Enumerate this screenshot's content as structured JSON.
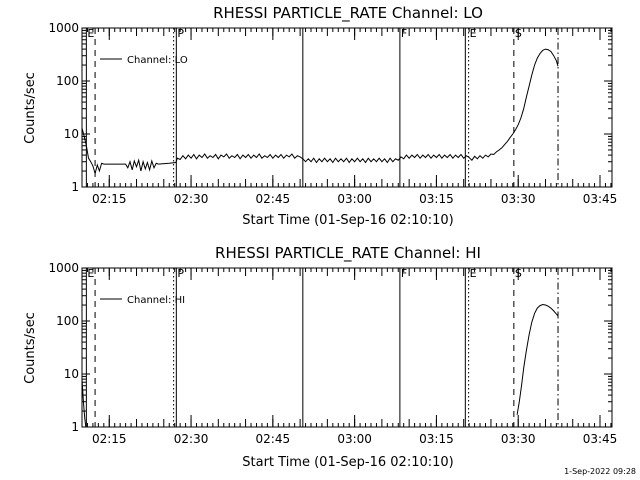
{
  "footer": "1-Sep-2022 09:28",
  "chart_data": [
    {
      "type": "line",
      "title": "RHESSI PARTICLE_RATE Channel: LO",
      "xlabel": "Start Time (01-Sep-16 02:10:10)",
      "ylabel": "Counts/sec",
      "yscale": "log",
      "ylim": [
        1,
        1000
      ],
      "xlim": [
        0,
        97.2
      ],
      "x_ticks": [
        {
          "x": 5,
          "label": "02:15"
        },
        {
          "x": 20,
          "label": "02:30"
        },
        {
          "x": 35,
          "label": "02:45"
        },
        {
          "x": 50,
          "label": "03:00"
        },
        {
          "x": 65,
          "label": "03:15"
        },
        {
          "x": 80,
          "label": "03:30"
        },
        {
          "x": 95,
          "label": "03:45"
        }
      ],
      "y_ticks": [
        {
          "y": 1,
          "label": "1"
        },
        {
          "y": 10,
          "label": "10"
        },
        {
          "y": 100,
          "label": "100"
        },
        {
          "y": 1000,
          "label": "1000"
        }
      ],
      "legend": {
        "label": "Channel: LO",
        "position": "top-left"
      },
      "markers": [
        {
          "label": "E",
          "x": 0.8,
          "style": "solid"
        },
        {
          "label": "",
          "x": 2.4,
          "style": "dash"
        },
        {
          "label": "",
          "x": 16.8,
          "style": "dot"
        },
        {
          "label": "P",
          "x": 17.3,
          "style": "solid"
        },
        {
          "label": "",
          "x": 40.5,
          "style": "solid"
        },
        {
          "label": "F",
          "x": 58.3,
          "style": "solid"
        },
        {
          "label": "",
          "x": 70.3,
          "style": "solid"
        },
        {
          "label": "E",
          "x": 70.9,
          "style": "dot"
        },
        {
          "label": "S",
          "x": 79.2,
          "style": "dash"
        },
        {
          "label": "",
          "x": 87.3,
          "style": "dashdot"
        }
      ],
      "series": [
        {
          "values": [
            {
              "x": 0.0,
              "y": 13
            },
            {
              "x": 0.4,
              "y": 9
            },
            {
              "x": 0.8,
              "y": 6
            },
            {
              "x": 1.2,
              "y": 3.5
            },
            {
              "x": 1.6,
              "y": 3.0
            },
            {
              "x": 2.0,
              "y": 2.5
            },
            {
              "x": 2.4,
              "y": 1.8
            },
            {
              "x": 2.8,
              "y": 2.6
            },
            {
              "x": 3.2,
              "y": 2.0
            },
            {
              "x": 3.6,
              "y": 2.8
            },
            {
              "x": 4.0,
              "y": 2.7
            },
            {
              "x": 6.0,
              "y": 2.7
            },
            {
              "x": 8.0,
              "y": 2.7
            },
            {
              "x": 8.4,
              "y": 2.3
            },
            {
              "x": 8.8,
              "y": 3.0
            },
            {
              "x": 9.2,
              "y": 2.1
            },
            {
              "x": 9.6,
              "y": 3.1
            },
            {
              "x": 10.0,
              "y": 2.4
            },
            {
              "x": 10.4,
              "y": 3.2
            },
            {
              "x": 10.8,
              "y": 2.0
            },
            {
              "x": 11.2,
              "y": 3.0
            },
            {
              "x": 11.6,
              "y": 2.2
            },
            {
              "x": 12.0,
              "y": 2.9
            },
            {
              "x": 12.4,
              "y": 2.1
            },
            {
              "x": 12.8,
              "y": 3.1
            },
            {
              "x": 13.2,
              "y": 2.3
            },
            {
              "x": 13.6,
              "y": 2.8
            },
            {
              "x": 14.0,
              "y": 2.7
            },
            {
              "x": 16.0,
              "y": 2.8
            },
            {
              "x": 17.2,
              "y": 2.9
            },
            {
              "x": 17.5,
              "y": 3.5
            },
            {
              "x": 18.0,
              "y": 3.3
            },
            {
              "x": 18.5,
              "y": 3.9
            },
            {
              "x": 19.0,
              "y": 3.4
            },
            {
              "x": 19.5,
              "y": 4.0
            },
            {
              "x": 20.0,
              "y": 3.5
            },
            {
              "x": 20.5,
              "y": 4.1
            },
            {
              "x": 21.0,
              "y": 3.4
            },
            {
              "x": 21.5,
              "y": 4.0
            },
            {
              "x": 22.0,
              "y": 3.6
            },
            {
              "x": 22.5,
              "y": 4.2
            },
            {
              "x": 23.0,
              "y": 3.5
            },
            {
              "x": 23.5,
              "y": 3.9
            },
            {
              "x": 24.0,
              "y": 3.6
            },
            {
              "x": 24.5,
              "y": 4.1
            },
            {
              "x": 25.0,
              "y": 3.4
            },
            {
              "x": 25.5,
              "y": 4.0
            },
            {
              "x": 26.0,
              "y": 3.7
            },
            {
              "x": 26.5,
              "y": 4.2
            },
            {
              "x": 27.0,
              "y": 3.5
            },
            {
              "x": 27.5,
              "y": 3.9
            },
            {
              "x": 28.0,
              "y": 3.6
            },
            {
              "x": 28.5,
              "y": 4.1
            },
            {
              "x": 29.0,
              "y": 3.4
            },
            {
              "x": 29.5,
              "y": 4.0
            },
            {
              "x": 30.0,
              "y": 3.6
            },
            {
              "x": 30.5,
              "y": 4.1
            },
            {
              "x": 31.0,
              "y": 3.5
            },
            {
              "x": 31.5,
              "y": 4.0
            },
            {
              "x": 32.0,
              "y": 3.6
            },
            {
              "x": 32.5,
              "y": 4.2
            },
            {
              "x": 33.0,
              "y": 3.5
            },
            {
              "x": 33.5,
              "y": 3.9
            },
            {
              "x": 34.0,
              "y": 3.6
            },
            {
              "x": 34.5,
              "y": 4.1
            },
            {
              "x": 35.0,
              "y": 3.5
            },
            {
              "x": 35.5,
              "y": 4.0
            },
            {
              "x": 36.0,
              "y": 3.6
            },
            {
              "x": 36.5,
              "y": 4.1
            },
            {
              "x": 37.0,
              "y": 3.5
            },
            {
              "x": 37.5,
              "y": 4.0
            },
            {
              "x": 38.0,
              "y": 3.7
            },
            {
              "x": 38.5,
              "y": 4.2
            },
            {
              "x": 39.0,
              "y": 3.5
            },
            {
              "x": 39.5,
              "y": 3.9
            },
            {
              "x": 40.0,
              "y": 3.7
            },
            {
              "x": 40.5,
              "y": 3.4
            },
            {
              "x": 41.0,
              "y": 3.0
            },
            {
              "x": 41.5,
              "y": 3.4
            },
            {
              "x": 42.0,
              "y": 3.0
            },
            {
              "x": 42.5,
              "y": 3.5
            },
            {
              "x": 43.0,
              "y": 2.9
            },
            {
              "x": 43.5,
              "y": 3.4
            },
            {
              "x": 44.0,
              "y": 3.0
            },
            {
              "x": 44.5,
              "y": 3.5
            },
            {
              "x": 45.0,
              "y": 3.0
            },
            {
              "x": 45.5,
              "y": 3.4
            },
            {
              "x": 46.0,
              "y": 2.9
            },
            {
              "x": 46.5,
              "y": 3.5
            },
            {
              "x": 47.0,
              "y": 3.0
            },
            {
              "x": 47.5,
              "y": 3.4
            },
            {
              "x": 48.0,
              "y": 3.0
            },
            {
              "x": 48.5,
              "y": 3.5
            },
            {
              "x": 49.0,
              "y": 2.9
            },
            {
              "x": 49.5,
              "y": 3.4
            },
            {
              "x": 50.0,
              "y": 3.0
            },
            {
              "x": 50.5,
              "y": 3.5
            },
            {
              "x": 51.0,
              "y": 3.0
            },
            {
              "x": 51.5,
              "y": 3.4
            },
            {
              "x": 52.0,
              "y": 2.9
            },
            {
              "x": 52.5,
              "y": 3.5
            },
            {
              "x": 53.0,
              "y": 3.0
            },
            {
              "x": 53.5,
              "y": 3.4
            },
            {
              "x": 54.0,
              "y": 3.0
            },
            {
              "x": 54.5,
              "y": 3.5
            },
            {
              "x": 55.0,
              "y": 3.0
            },
            {
              "x": 55.5,
              "y": 3.4
            },
            {
              "x": 56.0,
              "y": 2.9
            },
            {
              "x": 56.5,
              "y": 3.5
            },
            {
              "x": 57.0,
              "y": 3.0
            },
            {
              "x": 57.5,
              "y": 3.4
            },
            {
              "x": 58.0,
              "y": 3.2
            },
            {
              "x": 58.5,
              "y": 3.7
            },
            {
              "x": 59.0,
              "y": 3.4
            },
            {
              "x": 59.5,
              "y": 4.0
            },
            {
              "x": 60.0,
              "y": 3.5
            },
            {
              "x": 60.5,
              "y": 4.0
            },
            {
              "x": 61.0,
              "y": 3.6
            },
            {
              "x": 61.5,
              "y": 4.1
            },
            {
              "x": 62.0,
              "y": 3.5
            },
            {
              "x": 62.5,
              "y": 4.0
            },
            {
              "x": 63.0,
              "y": 3.6
            },
            {
              "x": 63.5,
              "y": 4.1
            },
            {
              "x": 64.0,
              "y": 3.5
            },
            {
              "x": 64.5,
              "y": 4.0
            },
            {
              "x": 65.0,
              "y": 3.6
            },
            {
              "x": 65.5,
              "y": 4.1
            },
            {
              "x": 66.0,
              "y": 3.5
            },
            {
              "x": 66.5,
              "y": 4.0
            },
            {
              "x": 67.0,
              "y": 3.6
            },
            {
              "x": 67.5,
              "y": 4.1
            },
            {
              "x": 68.0,
              "y": 3.5
            },
            {
              "x": 68.5,
              "y": 4.0
            },
            {
              "x": 69.0,
              "y": 3.6
            },
            {
              "x": 69.5,
              "y": 4.1
            },
            {
              "x": 70.0,
              "y": 3.5
            },
            {
              "x": 70.5,
              "y": 3.9
            },
            {
              "x": 71.0,
              "y": 3.6
            },
            {
              "x": 71.5,
              "y": 3.2
            },
            {
              "x": 72.0,
              "y": 3.8
            },
            {
              "x": 72.5,
              "y": 3.4
            },
            {
              "x": 73.0,
              "y": 3.9
            },
            {
              "x": 73.5,
              "y": 3.5
            },
            {
              "x": 74.0,
              "y": 4.0
            },
            {
              "x": 74.5,
              "y": 3.7
            },
            {
              "x": 75.0,
              "y": 4.2
            },
            {
              "x": 75.5,
              "y": 4.1
            },
            {
              "x": 76.0,
              "y": 4.6
            },
            {
              "x": 76.5,
              "y": 5.0
            },
            {
              "x": 77.0,
              "y": 5.5
            },
            {
              "x": 77.5,
              "y": 6.3
            },
            {
              "x": 78.0,
              "y": 7.2
            },
            {
              "x": 78.5,
              "y": 8.5
            },
            {
              "x": 79.0,
              "y": 10
            },
            {
              "x": 79.5,
              "y": 12
            },
            {
              "x": 80.0,
              "y": 15
            },
            {
              "x": 80.5,
              "y": 20
            },
            {
              "x": 81.0,
              "y": 30
            },
            {
              "x": 81.5,
              "y": 50
            },
            {
              "x": 82.0,
              "y": 80
            },
            {
              "x": 82.5,
              "y": 130
            },
            {
              "x": 83.0,
              "y": 200
            },
            {
              "x": 83.5,
              "y": 270
            },
            {
              "x": 84.0,
              "y": 330
            },
            {
              "x": 84.5,
              "y": 380
            },
            {
              "x": 85.0,
              "y": 400
            },
            {
              "x": 85.5,
              "y": 390
            },
            {
              "x": 86.0,
              "y": 360
            },
            {
              "x": 86.5,
              "y": 300
            },
            {
              "x": 87.0,
              "y": 240
            },
            {
              "x": 87.3,
              "y": 190
            }
          ]
        }
      ]
    },
    {
      "type": "line",
      "title": "RHESSI PARTICLE_RATE Channel: HI",
      "xlabel": "Start Time (01-Sep-16 02:10:10)",
      "ylabel": "Counts/sec",
      "yscale": "log",
      "ylim": [
        1,
        1000
      ],
      "xlim": [
        0,
        97.2
      ],
      "x_ticks": [
        {
          "x": 5,
          "label": "02:15"
        },
        {
          "x": 20,
          "label": "02:30"
        },
        {
          "x": 35,
          "label": "02:45"
        },
        {
          "x": 50,
          "label": "03:00"
        },
        {
          "x": 65,
          "label": "03:15"
        },
        {
          "x": 80,
          "label": "03:30"
        },
        {
          "x": 95,
          "label": "03:45"
        }
      ],
      "y_ticks": [
        {
          "y": 1,
          "label": "1"
        },
        {
          "y": 10,
          "label": "10"
        },
        {
          "y": 100,
          "label": "100"
        },
        {
          "y": 1000,
          "label": "1000"
        }
      ],
      "legend": {
        "label": "Channel: HI",
        "position": "top-left"
      },
      "markers": [
        {
          "label": "E",
          "x": 0.8,
          "style": "solid"
        },
        {
          "label": "",
          "x": 2.4,
          "style": "dash"
        },
        {
          "label": "",
          "x": 16.8,
          "style": "dot"
        },
        {
          "label": "P",
          "x": 17.3,
          "style": "solid"
        },
        {
          "label": "",
          "x": 40.5,
          "style": "solid"
        },
        {
          "label": "F",
          "x": 58.3,
          "style": "solid"
        },
        {
          "label": "",
          "x": 70.3,
          "style": "solid"
        },
        {
          "label": "E",
          "x": 70.9,
          "style": "dot"
        },
        {
          "label": "S",
          "x": 79.2,
          "style": "dash"
        },
        {
          "label": "",
          "x": 87.3,
          "style": "dashdot"
        }
      ],
      "series": [
        {
          "values": [
            {
              "x": 0.0,
              "y": 8
            },
            {
              "x": 0.25,
              "y": 3
            },
            {
              "x": 0.5,
              "y": 1.5
            },
            {
              "x": 0.7,
              "y": 1.0
            }
          ]
        },
        {
          "values": [
            {
              "x": 79.8,
              "y": 1.7
            },
            {
              "x": 80.2,
              "y": 3.0
            },
            {
              "x": 80.6,
              "y": 6
            },
            {
              "x": 81.0,
              "y": 13
            },
            {
              "x": 81.5,
              "y": 28
            },
            {
              "x": 82.0,
              "y": 55
            },
            {
              "x": 82.5,
              "y": 95
            },
            {
              "x": 83.0,
              "y": 140
            },
            {
              "x": 83.5,
              "y": 175
            },
            {
              "x": 84.0,
              "y": 195
            },
            {
              "x": 84.5,
              "y": 205
            },
            {
              "x": 85.0,
              "y": 200
            },
            {
              "x": 85.5,
              "y": 190
            },
            {
              "x": 86.0,
              "y": 175
            },
            {
              "x": 86.5,
              "y": 155
            },
            {
              "x": 87.0,
              "y": 135
            },
            {
              "x": 87.3,
              "y": 125
            }
          ]
        }
      ]
    }
  ]
}
